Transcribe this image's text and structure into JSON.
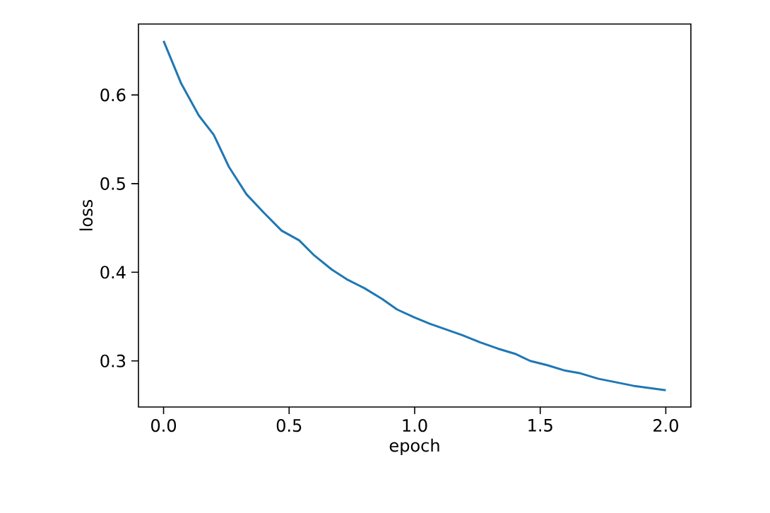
{
  "chart_data": {
    "type": "line",
    "xlabel": "epoch",
    "ylabel": "loss",
    "x": [
      0,
      0.07,
      0.14,
      0.2,
      0.26,
      0.33,
      0.4,
      0.47,
      0.54,
      0.6,
      0.67,
      0.73,
      0.8,
      0.87,
      0.93,
      1.0,
      1.06,
      1.13,
      1.19,
      1.26,
      1.33,
      1.4,
      1.46,
      1.53,
      1.6,
      1.66,
      1.73,
      1.8,
      1.87,
      2.0
    ],
    "series": [
      {
        "color": "#1f77b4",
        "values": [
          0.661,
          0.613,
          0.577,
          0.555,
          0.519,
          0.488,
          0.467,
          0.447,
          0.436,
          0.419,
          0.403,
          0.392,
          0.382,
          0.37,
          0.358,
          0.349,
          0.342,
          0.335,
          0.329,
          0.321,
          0.314,
          0.308,
          0.3,
          0.295,
          0.289,
          0.286,
          0.28,
          0.276,
          0.272,
          0.267
        ]
      }
    ],
    "xlim": [
      -0.1,
      2.1
    ],
    "ylim": [
      0.248,
      0.68
    ],
    "xticks": [
      {
        "value": 0,
        "label": "0.0"
      },
      0.5,
      {
        "value": 1,
        "label": "1.0"
      },
      1.5,
      {
        "value": 2,
        "label": "2.0"
      }
    ],
    "yticks": [
      0.3,
      0.4,
      0.5,
      0.6
    ],
    "grid": false,
    "marker": "none",
    "line_style": "solid"
  }
}
